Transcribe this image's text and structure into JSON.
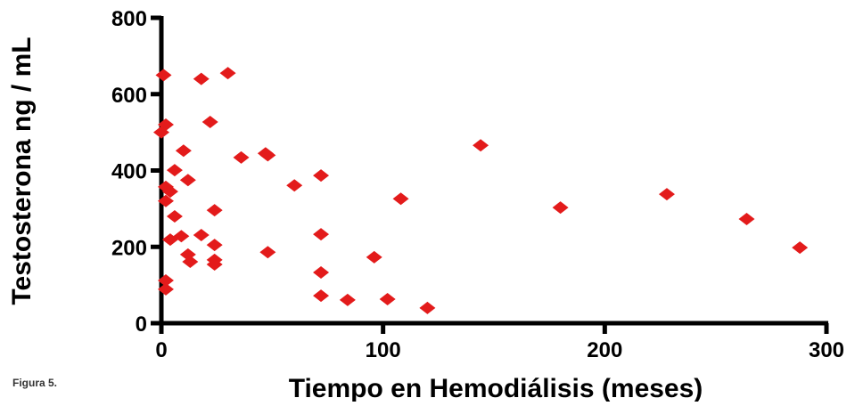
{
  "chart_data": {
    "type": "scatter",
    "xlabel": "Tiempo en Hemodiálisis (meses)",
    "ylabel": "Testosterona ng / mL",
    "note": "Figura 5.",
    "color": "#e31b1b",
    "xlim": [
      0,
      300
    ],
    "xticks": [
      0,
      100,
      200,
      300
    ],
    "ylim": [
      0,
      800
    ],
    "yticks": [
      0,
      200,
      400,
      600,
      800
    ],
    "x": [
      1,
      18,
      30,
      2,
      0,
      22,
      10,
      36,
      47,
      48,
      144,
      6,
      12,
      72,
      60,
      2,
      4,
      2,
      108,
      228,
      180,
      24,
      6,
      264,
      4,
      9,
      18,
      72,
      24,
      288,
      12,
      48,
      96,
      13,
      24,
      24,
      72,
      2,
      2,
      72,
      84,
      102,
      120
    ],
    "values": [
      650,
      640,
      655,
      520,
      500,
      527,
      452,
      434,
      445,
      440,
      466,
      401,
      375,
      387,
      361,
      357,
      345,
      320,
      326,
      338,
      303,
      296,
      280,
      273,
      219,
      228,
      231,
      233,
      205,
      198,
      180,
      186,
      173,
      161,
      166,
      154,
      133,
      112,
      89,
      72,
      61,
      63,
      40
    ]
  }
}
